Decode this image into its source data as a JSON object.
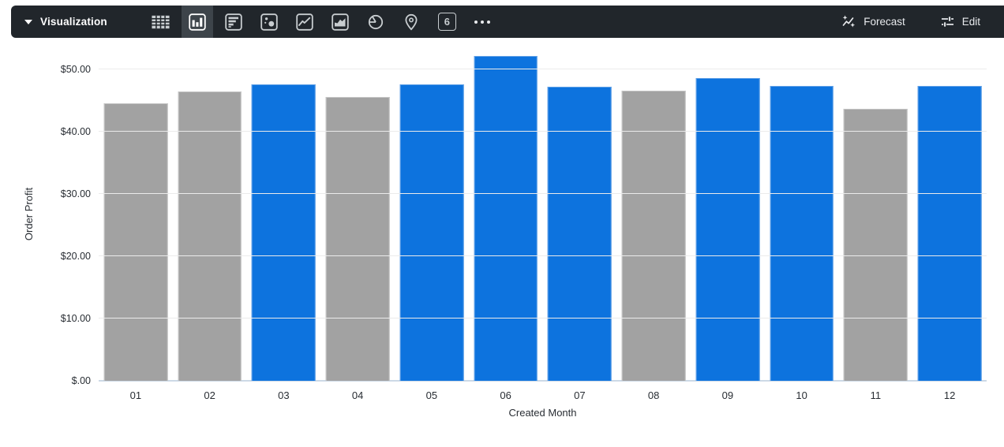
{
  "toolbar": {
    "title": "Visualization",
    "selected_chart_type": "bar-chart",
    "chart_type_icons": [
      "table",
      "bar-chart",
      "row-chart",
      "scatter-chart",
      "line-chart",
      "area-chart",
      "pie-chart",
      "map-pin",
      "single-value",
      "more-options"
    ],
    "single_value_number": "6",
    "forecast_label": "Forecast",
    "edit_label": "Edit"
  },
  "chart_data": {
    "type": "bar",
    "title": "",
    "xlabel": "Created Month",
    "ylabel": "Order Profit",
    "categories": [
      "01",
      "02",
      "03",
      "04",
      "05",
      "06",
      "07",
      "08",
      "09",
      "10",
      "11",
      "12"
    ],
    "values": [
      44.5,
      46.4,
      47.5,
      45.5,
      47.5,
      52.1,
      47.2,
      46.6,
      48.6,
      47.3,
      43.6,
      47.3
    ],
    "bar_palette": [
      "gray",
      "gray",
      "blue",
      "gray",
      "blue",
      "blue",
      "blue",
      "gray",
      "blue",
      "blue",
      "gray",
      "blue"
    ],
    "palette": {
      "blue": "#0d73de",
      "gray": "#a2a2a2"
    },
    "palette_borders": {
      "blue": "#63a2e7",
      "gray": "#c6c6c6"
    },
    "y_ticks": [
      {
        "label": "$50.00",
        "value": 50
      },
      {
        "label": "$40.00",
        "value": 40
      },
      {
        "label": "$30.00",
        "value": 30
      },
      {
        "label": "$20.00",
        "value": 20
      },
      {
        "label": "$10.00",
        "value": 10
      },
      {
        "label": "$.00",
        "value": 0
      }
    ],
    "ylim": [
      0,
      53.5
    ],
    "grid": true,
    "legend": "none"
  },
  "colors": {
    "toolbar_bg": "#21262b",
    "selected_tile_bg": "#3d444a",
    "icon_color": "#c8cdd0",
    "axis_text": "#282d33",
    "gridline": "#ebebeb",
    "baseline": "#ccd9e6",
    "accent_blue": "#0d73de",
    "bar_gray": "#a2a2a2"
  }
}
